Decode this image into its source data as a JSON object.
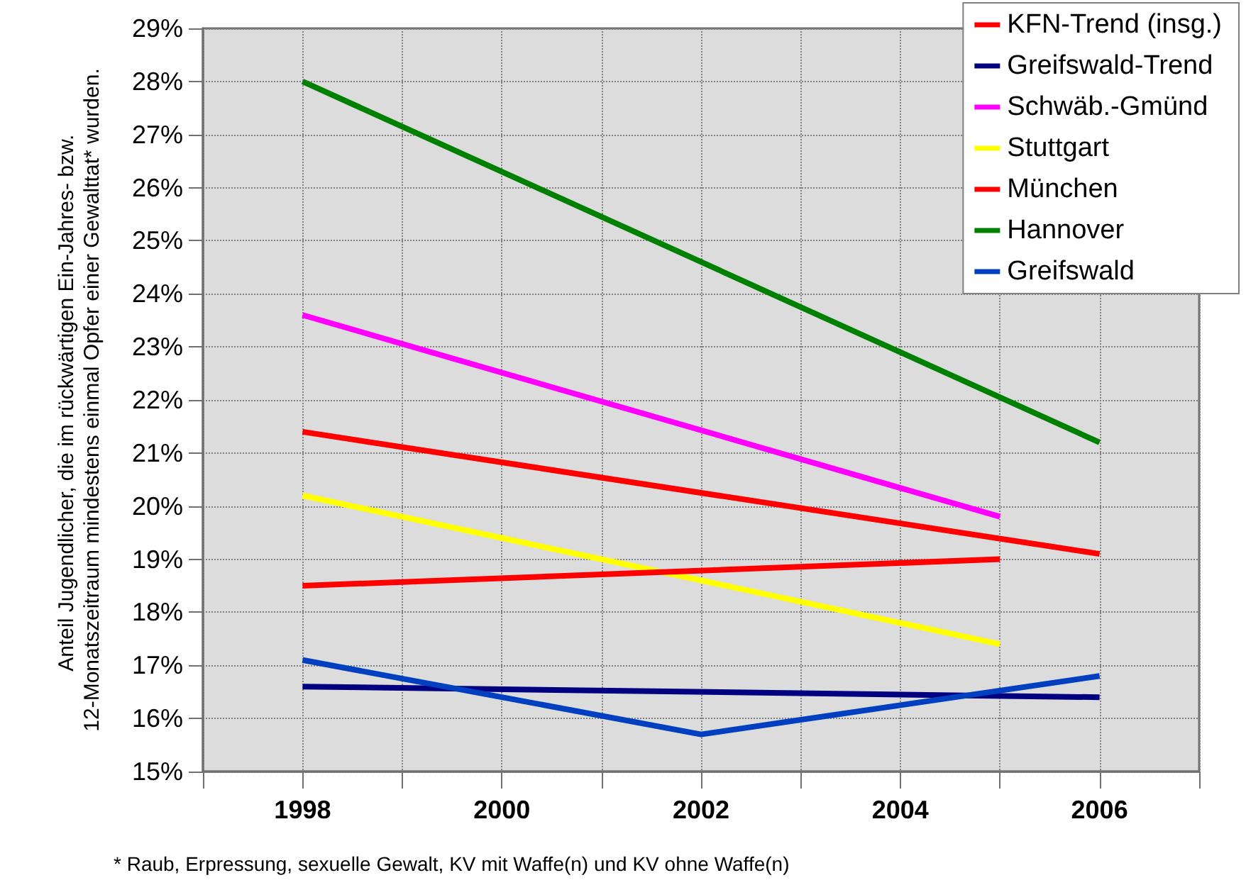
{
  "chart_data": {
    "type": "line",
    "ylabel": "Anteil Jugendlicher, die im rückwärtigen Ein-Jahres- bzw. 12-Monatszeitraum mindestens einmal Opfer einer Gewalttat* wurden.",
    "annotations": [
      "* Raub, Erpressung, sexuelle Gewalt, KV mit Waffe(n) und KV ohne Waffe(n)"
    ],
    "xlim": [
      1997,
      2007
    ],
    "xticks": [
      {
        "value": 1997,
        "label": null
      },
      1998,
      {
        "value": 1999,
        "label": null
      },
      2000,
      {
        "value": 2001,
        "label": null
      },
      2002,
      {
        "value": 2003,
        "label": null
      },
      2004,
      {
        "value": 2005,
        "label": null
      },
      2006,
      {
        "value": 2007,
        "label": null
      }
    ],
    "ylim": [
      15,
      29
    ],
    "yticks": [
      {
        "value": 15,
        "label": "15%"
      },
      {
        "value": 16,
        "label": "16%"
      },
      {
        "value": 17,
        "label": "17%"
      },
      {
        "value": 18,
        "label": "18%"
      },
      {
        "value": 19,
        "label": "19%"
      },
      {
        "value": 20,
        "label": "20%"
      },
      {
        "value": 21,
        "label": "21%"
      },
      {
        "value": 22,
        "label": "22%"
      },
      {
        "value": 23,
        "label": "23%"
      },
      {
        "value": 24,
        "label": "24%"
      },
      {
        "value": 25,
        "label": "25%"
      },
      {
        "value": 26,
        "label": "26%"
      },
      {
        "value": 27,
        "label": "27%"
      },
      {
        "value": 28,
        "label": "28%"
      },
      {
        "value": 29,
        "label": "29%"
      }
    ],
    "grid": true,
    "legend": "top right",
    "marker": "none",
    "line_style": "solid",
    "series": [
      {
        "name": "KFN-Trend (insg.)",
        "color": "#ff0000",
        "x": [
          1998,
          2006
        ],
        "values": [
          21.4,
          19.1
        ]
      },
      {
        "name": "Greifswald-Trend",
        "color": "#000080",
        "x": [
          1998,
          2006
        ],
        "values": [
          16.6,
          16.4
        ]
      },
      {
        "name": "Schwäb.-Gmünd",
        "color": "#ff00ff",
        "x": [
          1998,
          2005
        ],
        "values": [
          23.6,
          19.8
        ]
      },
      {
        "name": "Stuttgart",
        "color": "#ffff00",
        "x": [
          1998,
          2005
        ],
        "values": [
          20.2,
          17.4
        ]
      },
      {
        "name": "München",
        "color": "#ff0000",
        "x": [
          1998,
          2005
        ],
        "values": [
          18.5,
          19.0
        ]
      },
      {
        "name": "Hannover",
        "color": "#008000",
        "x": [
          1998,
          2006
        ],
        "values": [
          28.0,
          21.2
        ]
      },
      {
        "name": "Greifswald",
        "color": "#0040c0",
        "x": [
          1998,
          2002,
          2006
        ],
        "values": [
          17.1,
          15.7,
          16.8
        ]
      }
    ]
  }
}
